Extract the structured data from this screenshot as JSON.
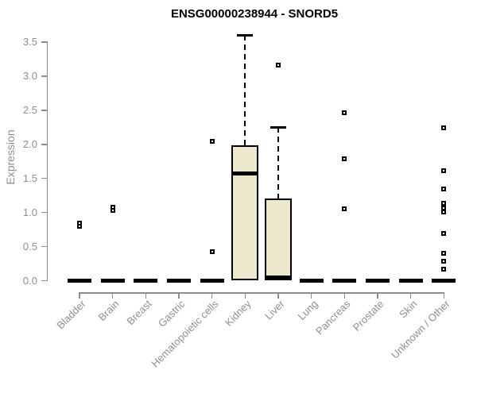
{
  "chart_data": {
    "type": "boxplot",
    "title": "ENSG00000238944 - SNORD5",
    "ylabel": "Expression",
    "xlabel": "",
    "ylim": [
      0,
      3.5
    ],
    "yticks": [
      0,
      0.5,
      1.0,
      1.5,
      2.0,
      2.5,
      3.0,
      3.5
    ],
    "ytick_labels": [
      "0.0",
      "0.5",
      "1.0",
      "1.5",
      "2.0",
      "2.5",
      "3.0",
      "3.5"
    ],
    "grid": false,
    "legend": null,
    "categories": [
      "Bladder",
      "Brain",
      "Breast",
      "Gastric",
      "Hematopoietic cells",
      "Kidney",
      "Liver",
      "Lung",
      "Pancreas",
      "Prostate",
      "Skin",
      "Unknown / Other"
    ],
    "boxes": [
      {
        "category": "Bladder",
        "q1": 0,
        "median": 0,
        "q3": 0,
        "whisker_low": 0,
        "whisker_high": 0,
        "outliers": [
          0.85,
          0.8
        ]
      },
      {
        "category": "Brain",
        "q1": 0,
        "median": 0,
        "q3": 0,
        "whisker_low": 0,
        "whisker_high": 0,
        "outliers": [
          1.08,
          1.03
        ]
      },
      {
        "category": "Breast",
        "q1": 0,
        "median": 0,
        "q3": 0,
        "whisker_low": 0,
        "whisker_high": 0,
        "outliers": []
      },
      {
        "category": "Gastric",
        "q1": 0,
        "median": 0,
        "q3": 0,
        "whisker_low": 0,
        "whisker_high": 0,
        "outliers": []
      },
      {
        "category": "Hematopoietic cells",
        "q1": 0,
        "median": 0,
        "q3": 0,
        "whisker_low": 0,
        "whisker_high": 0,
        "outliers": [
          2.04,
          0.43
        ]
      },
      {
        "category": "Kidney",
        "q1": 0,
        "median": 1.57,
        "q3": 1.98,
        "whisker_low": 0,
        "whisker_high": 3.6,
        "outliers": []
      },
      {
        "category": "Liver",
        "q1": 0,
        "median": 0.05,
        "q3": 1.21,
        "whisker_low": 0,
        "whisker_high": 2.25,
        "outliers": [
          3.16
        ]
      },
      {
        "category": "Lung",
        "q1": 0,
        "median": 0,
        "q3": 0,
        "whisker_low": 0,
        "whisker_high": 0,
        "outliers": []
      },
      {
        "category": "Pancreas",
        "q1": 0,
        "median": 0,
        "q3": 0,
        "whisker_low": 0,
        "whisker_high": 0,
        "outliers": [
          2.46,
          1.79,
          1.05
        ]
      },
      {
        "category": "Prostate",
        "q1": 0,
        "median": 0,
        "q3": 0,
        "whisker_low": 0,
        "whisker_high": 0,
        "outliers": []
      },
      {
        "category": "Skin",
        "q1": 0,
        "median": 0,
        "q3": 0,
        "whisker_low": 0,
        "whisker_high": 0,
        "outliers": []
      },
      {
        "category": "Unknown / Other",
        "q1": 0,
        "median": 0,
        "q3": 0,
        "whisker_low": 0,
        "whisker_high": 0,
        "outliers": [
          2.24,
          1.61,
          1.35,
          1.13,
          1.07,
          1.01,
          0.69,
          0.4,
          0.28,
          0.17
        ]
      }
    ],
    "skin_outliers_note": null,
    "colors": {
      "box_fill": "#EDE7CE",
      "box_border": "#000000",
      "median": "#000000",
      "whisker": "#000000",
      "outlier_border": "#000000",
      "outlier_fill": "#ffffff",
      "axis": "#8c8c8c",
      "tick_label": "#8f8f8f",
      "title": "#000000",
      "background": "#ffffff"
    }
  }
}
